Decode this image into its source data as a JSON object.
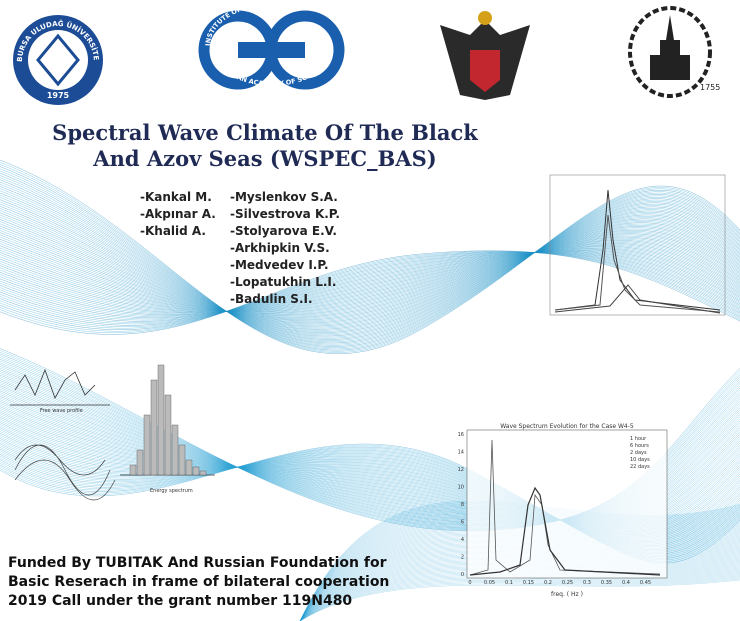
{
  "logos": {
    "uludag": {
      "name": "BURSA ULUDAĞ ÜNİVERSİTESİ",
      "year": "1975"
    },
    "oceanology": {
      "top": "INSTITUTE OF OCEANOLOGY",
      "bottom": "OF RUSSIAN ACADEMY OF SCIENCES"
    },
    "msu": {
      "year": "1755"
    }
  },
  "title": [
    "Spectral Wave Climate Of The Black",
    "And Azov Seas (WSPEC_BAS)"
  ],
  "authors_left": [
    "-Kankal M.",
    "-Akpınar A.",
    "-Khalid A."
  ],
  "authors_right": [
    "-Myslenkov S.A.",
    "-Silvestrova K.P.",
    "-Stolyarova E.V.",
    "-Arkhipkin V.S.",
    "-Medvedev I.P.",
    "-Lopatukhin L.I.",
    "-Badulin S.I."
  ],
  "funding": [
    "Funded By TUBITAK And Russian Foundation for",
    "Basic Reserach in frame of bilateral cooperation",
    "2019 Call under the grant number 119N480"
  ],
  "figure_spectrum": {
    "title": "Wave Spectrum Evolution for the Case W4-5",
    "x_label": "freq. ( Hz )",
    "legend": [
      "1 hour",
      "6 hours",
      "2 days",
      "10 days",
      "22 days"
    ],
    "xticks": [
      "0",
      "0.05",
      "0.1",
      "0.15",
      "0.2",
      "0.25",
      "0.3",
      "0.35",
      "0.4",
      "0.45"
    ],
    "yticks": [
      "0",
      "2",
      "4",
      "6",
      "8",
      "10",
      "12",
      "14",
      "16"
    ]
  },
  "figure_left": {
    "x_label": "Energy spectrum",
    "profile_label": "Free wave profile"
  }
}
